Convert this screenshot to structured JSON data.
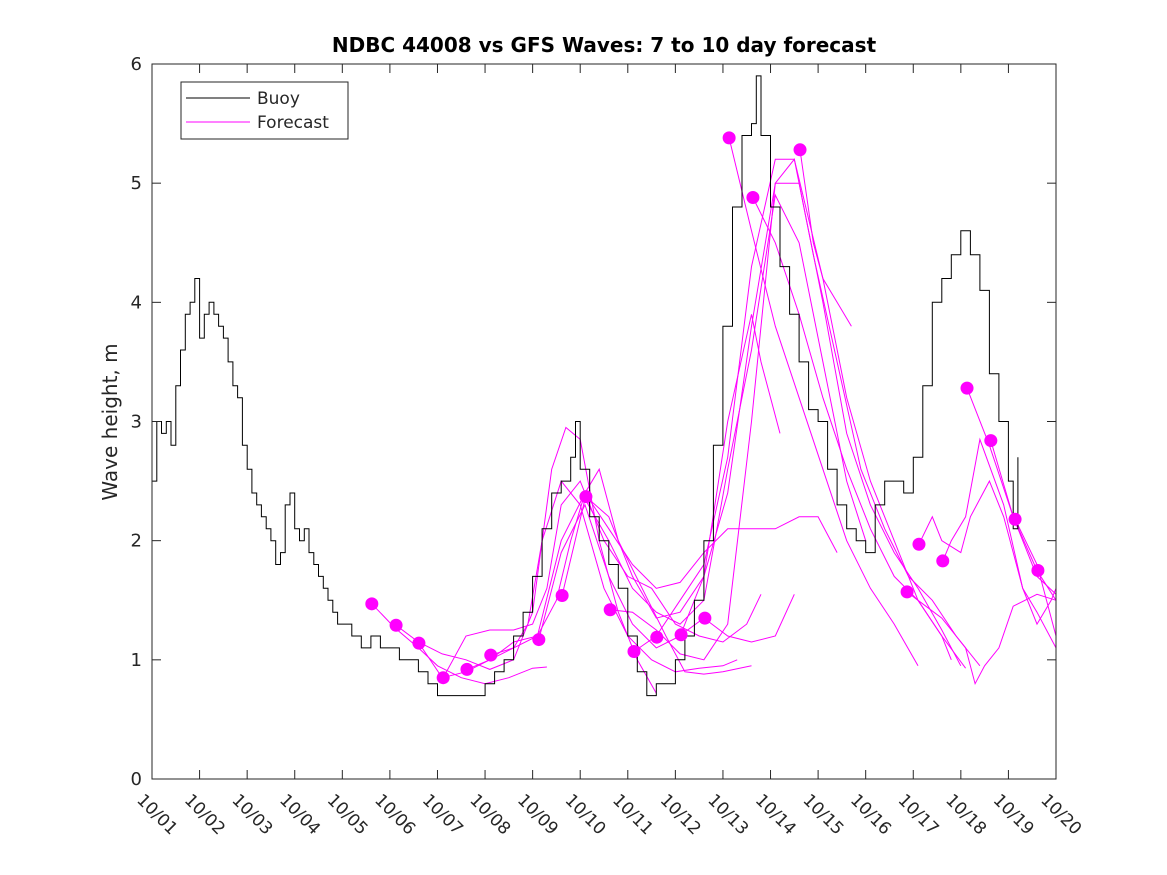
{
  "chart_data": {
    "type": "line",
    "title": "NDBC 44008 vs GFS Waves: 7 to 10 day forecast",
    "xlabel": "",
    "ylabel": "Wave height, m",
    "xlim": [
      0,
      19
    ],
    "ylim": [
      0,
      6
    ],
    "x_units": "days since 10/01",
    "x_tick_labels": [
      "10/01",
      "10/02",
      "10/03",
      "10/04",
      "10/05",
      "10/06",
      "10/07",
      "10/08",
      "10/09",
      "10/10",
      "10/11",
      "10/12",
      "10/13",
      "10/14",
      "10/15",
      "10/16",
      "10/17",
      "10/18",
      "10/19",
      "10/20"
    ],
    "y_ticks": [
      0,
      1,
      2,
      3,
      4,
      5,
      6
    ],
    "grid": false,
    "legend": {
      "placement": "top-left",
      "entries": [
        "Buoy",
        "Forecast"
      ]
    },
    "colors": {
      "buoy": "#000000",
      "forecast": "#ff00ff"
    },
    "buoy": [
      [
        0,
        2.5
      ],
      [
        0.1,
        3.0
      ],
      [
        0.2,
        2.9
      ],
      [
        0.3,
        3.0
      ],
      [
        0.4,
        2.8
      ],
      [
        0.5,
        3.3
      ],
      [
        0.6,
        3.6
      ],
      [
        0.7,
        3.9
      ],
      [
        0.8,
        4.0
      ],
      [
        0.9,
        4.2
      ],
      [
        1.0,
        3.7
      ],
      [
        1.1,
        3.9
      ],
      [
        1.2,
        4.0
      ],
      [
        1.3,
        3.9
      ],
      [
        1.4,
        3.8
      ],
      [
        1.5,
        3.7
      ],
      [
        1.6,
        3.5
      ],
      [
        1.7,
        3.3
      ],
      [
        1.8,
        3.2
      ],
      [
        1.9,
        2.8
      ],
      [
        2.0,
        2.6
      ],
      [
        2.1,
        2.4
      ],
      [
        2.2,
        2.3
      ],
      [
        2.3,
        2.2
      ],
      [
        2.4,
        2.1
      ],
      [
        2.5,
        2.0
      ],
      [
        2.6,
        1.8
      ],
      [
        2.7,
        1.9
      ],
      [
        2.8,
        2.3
      ],
      [
        2.9,
        2.4
      ],
      [
        3.0,
        2.1
      ],
      [
        3.1,
        2.0
      ],
      [
        3.2,
        2.1
      ],
      [
        3.3,
        1.9
      ],
      [
        3.4,
        1.8
      ],
      [
        3.5,
        1.7
      ],
      [
        3.6,
        1.6
      ],
      [
        3.7,
        1.5
      ],
      [
        3.8,
        1.4
      ],
      [
        3.9,
        1.3
      ],
      [
        4.0,
        1.3
      ],
      [
        4.2,
        1.2
      ],
      [
        4.4,
        1.1
      ],
      [
        4.6,
        1.2
      ],
      [
        4.8,
        1.1
      ],
      [
        5.0,
        1.1
      ],
      [
        5.2,
        1.0
      ],
      [
        5.4,
        1.0
      ],
      [
        5.6,
        0.9
      ],
      [
        5.8,
        0.8
      ],
      [
        6.0,
        0.7
      ],
      [
        6.2,
        0.7
      ],
      [
        6.4,
        0.7
      ],
      [
        6.6,
        0.7
      ],
      [
        6.8,
        0.7
      ],
      [
        7.0,
        0.8
      ],
      [
        7.2,
        0.9
      ],
      [
        7.4,
        1.0
      ],
      [
        7.6,
        1.2
      ],
      [
        7.8,
        1.4
      ],
      [
        8.0,
        1.7
      ],
      [
        8.2,
        2.1
      ],
      [
        8.4,
        2.4
      ],
      [
        8.6,
        2.5
      ],
      [
        8.8,
        2.7
      ],
      [
        8.9,
        3.0
      ],
      [
        9.0,
        2.6
      ],
      [
        9.2,
        2.2
      ],
      [
        9.4,
        2.0
      ],
      [
        9.6,
        1.8
      ],
      [
        9.8,
        1.6
      ],
      [
        10.0,
        1.2
      ],
      [
        10.2,
        0.9
      ],
      [
        10.4,
        0.7
      ],
      [
        10.6,
        0.8
      ],
      [
        10.8,
        0.8
      ],
      [
        11.0,
        1.0
      ],
      [
        11.2,
        1.2
      ],
      [
        11.4,
        1.5
      ],
      [
        11.6,
        2.0
      ],
      [
        11.8,
        2.8
      ],
      [
        12.0,
        3.8
      ],
      [
        12.2,
        4.8
      ],
      [
        12.4,
        5.4
      ],
      [
        12.6,
        5.5
      ],
      [
        12.7,
        5.9
      ],
      [
        12.8,
        5.4
      ],
      [
        13.0,
        4.8
      ],
      [
        13.2,
        4.3
      ],
      [
        13.4,
        3.9
      ],
      [
        13.6,
        3.5
      ],
      [
        13.8,
        3.1
      ],
      [
        14.0,
        3.0
      ],
      [
        14.2,
        2.6
      ],
      [
        14.4,
        2.3
      ],
      [
        14.6,
        2.1
      ],
      [
        14.8,
        2.0
      ],
      [
        15.0,
        1.9
      ],
      [
        15.2,
        2.3
      ],
      [
        15.4,
        2.5
      ],
      [
        15.6,
        2.5
      ],
      [
        15.8,
        2.4
      ],
      [
        16.0,
        2.7
      ],
      [
        16.2,
        3.3
      ],
      [
        16.4,
        4.0
      ],
      [
        16.6,
        4.2
      ],
      [
        16.8,
        4.4
      ],
      [
        17.0,
        4.6
      ],
      [
        17.2,
        4.4
      ],
      [
        17.4,
        4.1
      ],
      [
        17.6,
        3.4
      ],
      [
        17.8,
        3.0
      ],
      [
        18.0,
        2.5
      ],
      [
        18.1,
        2.1
      ],
      [
        18.2,
        2.7
      ]
    ],
    "forecast_initial_points": [
      [
        4.62,
        1.47
      ],
      [
        5.13,
        1.29
      ],
      [
        5.61,
        1.14
      ],
      [
        6.12,
        0.85
      ],
      [
        6.62,
        0.92
      ],
      [
        7.12,
        1.04
      ],
      [
        8.13,
        1.17
      ],
      [
        8.62,
        1.54
      ],
      [
        9.12,
        2.37
      ],
      [
        9.63,
        1.42
      ],
      [
        10.13,
        1.07
      ],
      [
        10.61,
        1.19
      ],
      [
        11.12,
        1.21
      ],
      [
        11.62,
        1.35
      ],
      [
        12.13,
        5.38
      ],
      [
        12.63,
        4.88
      ],
      [
        13.62,
        5.28
      ],
      [
        15.87,
        1.57
      ],
      [
        16.12,
        1.97
      ],
      [
        16.62,
        1.83
      ],
      [
        17.13,
        3.28
      ],
      [
        17.63,
        2.84
      ],
      [
        18.14,
        2.18
      ],
      [
        18.62,
        1.75
      ]
    ],
    "forecasts": [
      [
        [
          4.62,
          1.47
        ],
        [
          5.1,
          1.27
        ],
        [
          5.6,
          1.1
        ],
        [
          6.0,
          0.95
        ],
        [
          6.5,
          0.85
        ],
        [
          7.0,
          0.8
        ],
        [
          7.5,
          0.85
        ],
        [
          8.0,
          0.93
        ],
        [
          8.3,
          0.94
        ]
      ],
      [
        [
          5.13,
          1.29
        ],
        [
          5.6,
          1.15
        ],
        [
          6.1,
          1.05
        ],
        [
          6.6,
          1.0
        ],
        [
          7.1,
          0.92
        ],
        [
          7.6,
          1.0
        ],
        [
          8.0,
          1.4
        ],
        [
          8.4,
          2.6
        ],
        [
          8.7,
          2.95
        ],
        [
          9.0,
          2.85
        ],
        [
          9.4,
          2.0
        ],
        [
          9.8,
          1.4
        ],
        [
          10.2,
          1.0
        ],
        [
          10.6,
          0.72
        ]
      ],
      [
        [
          5.61,
          1.14
        ],
        [
          6.1,
          0.85
        ],
        [
          6.6,
          0.9
        ],
        [
          7.1,
          1.0
        ],
        [
          7.6,
          1.1
        ],
        [
          7.9,
          1.3
        ],
        [
          8.2,
          2.0
        ],
        [
          8.6,
          2.5
        ],
        [
          9.0,
          2.3
        ],
        [
          9.5,
          1.6
        ],
        [
          10.0,
          1.2
        ],
        [
          10.5,
          1.0
        ],
        [
          11.0,
          0.9
        ],
        [
          11.5,
          0.93
        ],
        [
          12.0,
          0.95
        ],
        [
          12.3,
          1.0
        ]
      ],
      [
        [
          6.12,
          0.85
        ],
        [
          6.6,
          1.2
        ],
        [
          7.1,
          1.25
        ],
        [
          7.6,
          1.25
        ],
        [
          8.0,
          1.3
        ],
        [
          8.3,
          1.6
        ],
        [
          8.6,
          2.3
        ],
        [
          9.0,
          2.5
        ],
        [
          9.5,
          2.0
        ],
        [
          10.0,
          1.7
        ],
        [
          10.5,
          1.6
        ],
        [
          11.0,
          1.3
        ],
        [
          11.5,
          1.2
        ],
        [
          12.0,
          1.15
        ],
        [
          12.5,
          1.3
        ],
        [
          12.8,
          1.55
        ]
      ],
      [
        [
          6.62,
          0.92
        ],
        [
          7.1,
          1.0
        ],
        [
          7.6,
          1.15
        ],
        [
          8.1,
          1.2
        ],
        [
          8.5,
          1.5
        ],
        [
          8.8,
          2.0
        ],
        [
          9.1,
          2.4
        ],
        [
          9.4,
          2.6
        ],
        [
          9.8,
          2.0
        ],
        [
          10.3,
          1.6
        ],
        [
          10.8,
          1.2
        ],
        [
          11.2,
          0.9
        ],
        [
          11.6,
          0.88
        ],
        [
          12.0,
          0.9
        ],
        [
          12.6,
          0.95
        ]
      ],
      [
        [
          7.12,
          1.04
        ],
        [
          7.6,
          1.1
        ],
        [
          8.1,
          1.2
        ],
        [
          8.6,
          2.0
        ],
        [
          9.1,
          2.4
        ],
        [
          9.6,
          2.1
        ],
        [
          10.1,
          1.8
        ],
        [
          10.6,
          1.6
        ],
        [
          11.1,
          1.65
        ],
        [
          11.6,
          1.9
        ],
        [
          12.1,
          2.1
        ],
        [
          12.6,
          2.1
        ],
        [
          13.1,
          2.1
        ],
        [
          13.6,
          2.2
        ],
        [
          14.0,
          2.2
        ],
        [
          14.4,
          1.9
        ]
      ],
      [
        [
          8.13,
          1.17
        ],
        [
          8.6,
          1.9
        ],
        [
          9.1,
          2.3
        ],
        [
          9.6,
          1.7
        ],
        [
          10.1,
          1.3
        ],
        [
          10.6,
          1.1
        ],
        [
          11.1,
          1.2
        ],
        [
          11.6,
          1.7
        ],
        [
          12.1,
          3.0
        ],
        [
          12.6,
          3.9
        ],
        [
          12.8,
          3.5
        ],
        [
          13.2,
          2.9
        ]
      ],
      [
        [
          8.62,
          1.54
        ],
        [
          9.1,
          2.35
        ],
        [
          9.6,
          2.0
        ],
        [
          10.1,
          1.6
        ],
        [
          10.6,
          1.4
        ],
        [
          11.1,
          1.3
        ],
        [
          11.6,
          1.5
        ],
        [
          12.1,
          2.6
        ],
        [
          12.6,
          3.6
        ],
        [
          13.1,
          4.9
        ],
        [
          13.6,
          4.5
        ],
        [
          14.1,
          3.5
        ],
        [
          14.6,
          2.5
        ],
        [
          15.0,
          2.0
        ]
      ],
      [
        [
          9.12,
          2.37
        ],
        [
          9.6,
          2.2
        ],
        [
          10.1,
          1.7
        ],
        [
          10.6,
          1.35
        ],
        [
          11.1,
          1.4
        ],
        [
          11.6,
          1.7
        ],
        [
          12.1,
          2.4
        ],
        [
          12.6,
          3.8
        ],
        [
          13.1,
          5.0
        ],
        [
          13.6,
          5.0
        ],
        [
          14.1,
          4.0
        ],
        [
          14.6,
          2.9
        ],
        [
          15.1,
          2.3
        ],
        [
          15.6,
          1.9
        ],
        [
          16.1,
          1.6
        ],
        [
          16.6,
          1.25
        ],
        [
          17.0,
          0.95
        ]
      ],
      [
        [
          9.63,
          1.42
        ],
        [
          10.1,
          1.4
        ],
        [
          10.6,
          1.25
        ],
        [
          11.1,
          1.05
        ],
        [
          11.6,
          1.0
        ],
        [
          12.1,
          1.3
        ],
        [
          12.6,
          3.0
        ],
        [
          13.1,
          5.0
        ],
        [
          13.5,
          5.2
        ],
        [
          14.1,
          4.2
        ],
        [
          14.6,
          3.2
        ],
        [
          15.1,
          2.5
        ],
        [
          15.6,
          2.0
        ],
        [
          16.1,
          1.5
        ],
        [
          16.6,
          1.2
        ],
        [
          16.8,
          1.0
        ]
      ],
      [
        [
          10.13,
          1.07
        ],
        [
          10.6,
          1.2
        ],
        [
          11.1,
          1.5
        ],
        [
          11.6,
          1.8
        ],
        [
          12.1,
          2.7
        ],
        [
          12.6,
          4.3
        ],
        [
          13.1,
          5.2
        ],
        [
          13.5,
          5.2
        ],
        [
          13.9,
          4.4
        ],
        [
          14.4,
          3.5
        ],
        [
          14.9,
          2.6
        ],
        [
          15.4,
          2.1
        ],
        [
          15.9,
          1.7
        ],
        [
          16.4,
          1.5
        ],
        [
          16.9,
          1.2
        ],
        [
          17.4,
          0.95
        ]
      ],
      [
        [
          11.12,
          1.21
        ],
        [
          11.6,
          1.35
        ],
        [
          12.1,
          1.2
        ],
        [
          12.6,
          1.15
        ],
        [
          13.1,
          1.2
        ],
        [
          13.5,
          1.55
        ]
      ],
      [
        [
          12.13,
          5.38
        ],
        [
          12.6,
          4.6
        ],
        [
          13.1,
          3.8
        ],
        [
          13.6,
          3.2
        ],
        [
          14.1,
          2.6
        ],
        [
          14.6,
          2.0
        ],
        [
          15.1,
          1.6
        ],
        [
          15.6,
          1.3
        ],
        [
          16.1,
          0.95
        ]
      ],
      [
        [
          12.63,
          4.88
        ],
        [
          13.1,
          4.5
        ],
        [
          13.6,
          3.9
        ],
        [
          14.1,
          3.2
        ],
        [
          14.6,
          2.6
        ],
        [
          15.1,
          2.1
        ],
        [
          15.6,
          1.7
        ],
        [
          16.1,
          1.5
        ],
        [
          16.6,
          1.2
        ],
        [
          17.1,
          0.93
        ]
      ],
      [
        [
          13.62,
          5.28
        ],
        [
          13.9,
          4.5
        ],
        [
          14.1,
          4.2
        ],
        [
          14.4,
          4.0
        ],
        [
          14.7,
          3.8
        ]
      ],
      [
        [
          15.87,
          1.57
        ],
        [
          16.1,
          1.5
        ],
        [
          16.6,
          1.35
        ],
        [
          17.1,
          1.1
        ],
        [
          17.3,
          0.8
        ],
        [
          17.5,
          0.95
        ],
        [
          17.8,
          1.1
        ],
        [
          18.1,
          1.45
        ],
        [
          18.6,
          1.55
        ],
        [
          19.0,
          1.5
        ]
      ],
      [
        [
          16.12,
          1.97
        ],
        [
          16.4,
          2.2
        ],
        [
          16.6,
          2.0
        ],
        [
          17.0,
          1.9
        ],
        [
          17.2,
          2.2
        ],
        [
          17.6,
          2.5
        ],
        [
          17.9,
          2.2
        ],
        [
          18.3,
          1.6
        ],
        [
          18.6,
          1.3
        ],
        [
          18.9,
          1.5
        ],
        [
          19.0,
          1.6
        ]
      ],
      [
        [
          16.62,
          1.83
        ],
        [
          16.8,
          2.0
        ],
        [
          17.1,
          2.2
        ],
        [
          17.4,
          2.85
        ],
        [
          17.9,
          2.3
        ],
        [
          18.3,
          1.6
        ],
        [
          18.6,
          1.4
        ],
        [
          19.0,
          1.1
        ]
      ],
      [
        [
          17.13,
          3.28
        ],
        [
          17.6,
          2.8
        ],
        [
          18.1,
          2.2
        ],
        [
          18.6,
          1.75
        ],
        [
          19.0,
          1.5
        ]
      ],
      [
        [
          17.63,
          2.84
        ],
        [
          18.1,
          2.2
        ],
        [
          18.6,
          1.7
        ],
        [
          19.0,
          1.55
        ]
      ],
      [
        [
          18.14,
          2.18
        ],
        [
          18.6,
          1.8
        ],
        [
          19.0,
          1.2
        ]
      ]
    ]
  }
}
